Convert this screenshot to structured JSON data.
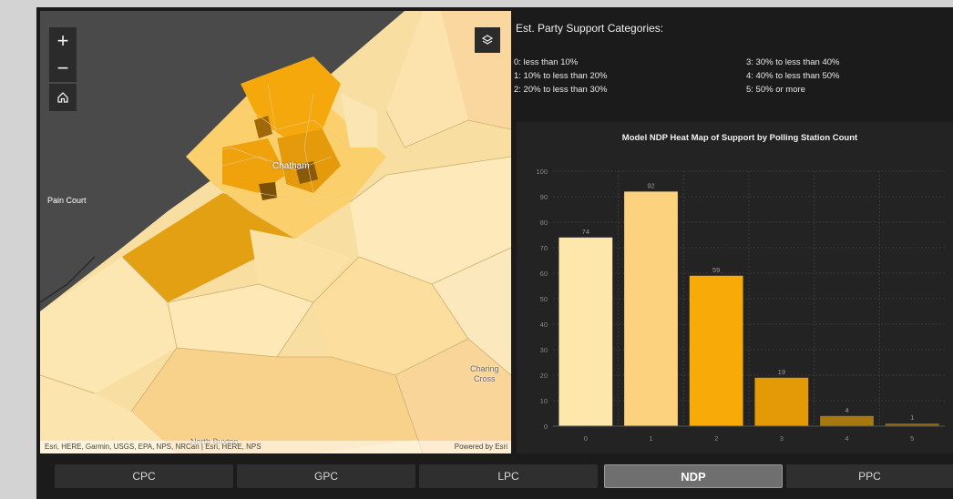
{
  "map": {
    "zoom_in": "+",
    "zoom_out": "−",
    "home_icon": "home-icon",
    "layers_icon": "layers-icon",
    "labels": {
      "chatham": "Chatham",
      "pain_court": "Pain Court",
      "north_buxton": "North Buxton",
      "charing_cross_1": "Charing",
      "charing_cross_2": "Cross"
    },
    "attribution_left": "Esri, HERE, Garmin, USGS, EPA, NPS, NRCan | Esri, HERE, NPS",
    "attribution_right": "Powered by Esri"
  },
  "legend": {
    "title": "Est. Party Support Categories:",
    "items": [
      "0: less than 10%",
      "1: 10% to less than 20%",
      "2: 20% to less than 30%",
      "3: 30% to less than 40%",
      "4: 40% to less than 50%",
      "5: 50% or more"
    ]
  },
  "chart_data": {
    "type": "bar",
    "title": "Model NDP Heat Map of Support by Polling Station Count",
    "categories": [
      "0",
      "1",
      "2",
      "3",
      "4",
      "5"
    ],
    "values": [
      74,
      92,
      59,
      19,
      4,
      1
    ],
    "ylim": [
      0,
      100
    ],
    "yticks": [
      0,
      10,
      20,
      30,
      40,
      50,
      60,
      70,
      80,
      90,
      100
    ],
    "colors": [
      "#fde7aa",
      "#fcd27f",
      "#f8ab08",
      "#e39a06",
      "#a77a10",
      "#8e6a1a"
    ],
    "grid": true
  },
  "tabs": [
    {
      "label": "CPC",
      "active": false
    },
    {
      "label": "GPC",
      "active": false
    },
    {
      "label": "LPC",
      "active": false
    },
    {
      "label": "NDP",
      "active": true
    },
    {
      "label": "PPC",
      "active": false
    }
  ]
}
